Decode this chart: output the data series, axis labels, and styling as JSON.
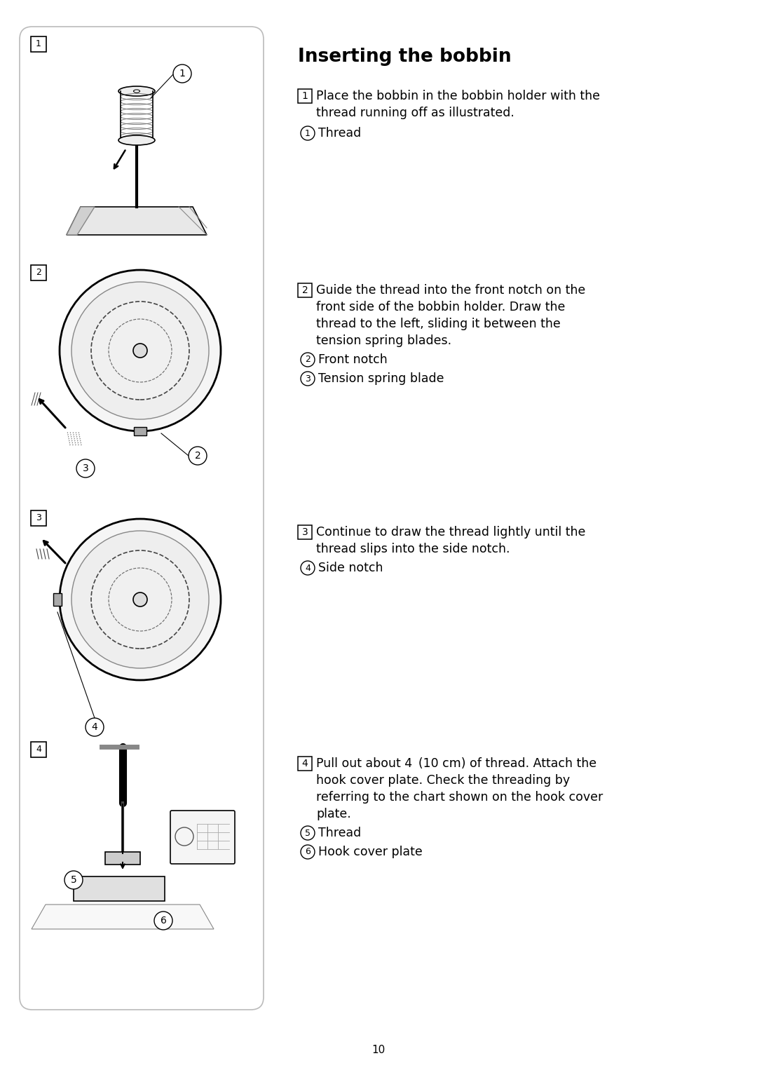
{
  "page_bg": "#ffffff",
  "page_number": "10",
  "title": "Inserting the bobbin",
  "text_color": "#000000",
  "panel_border": "#bbbbbb",
  "step1_lines": [
    "Place the bobbin in the bobbin holder with the",
    "thread running off as illustrated."
  ],
  "step1_subs": [
    [
      "1",
      "Thread"
    ]
  ],
  "step2_lines": [
    "Guide the thread into the front notch on the",
    "front side of the bobbin holder. Draw the",
    "thread to the left, sliding it between the",
    "tension spring blades."
  ],
  "step2_subs": [
    [
      "2",
      "Front notch"
    ],
    [
      "3",
      "Tension spring blade"
    ]
  ],
  "step3_lines": [
    "Continue to draw the thread lightly until the",
    "thread slips into the side notch."
  ],
  "step3_subs": [
    [
      "4",
      "Side notch"
    ]
  ],
  "step4_lines": [
    "Pull out about 4 (10 cm) of thread. Attach the",
    "hook cover plate. Check the threading by",
    "referring to the chart shown on the hook cover",
    "plate."
  ],
  "step4_subs": [
    [
      "5",
      "Thread"
    ],
    [
      "6",
      "Hook cover plate"
    ]
  ]
}
